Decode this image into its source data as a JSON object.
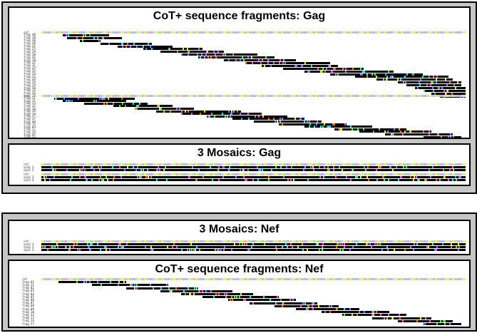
{
  "gag_group": {
    "fragments_panel": {
      "title": "CoT+ sequence fragments: Gag",
      "block1": {
        "labels": [
          "ref",
          "frag 40",
          "frag 10",
          "frag 20",
          "frag 30",
          "frag 41",
          "frag 25",
          "frag 29",
          "frag 38",
          "frag 45",
          "frag 18",
          "frag 22",
          "frag 31",
          "frag 42",
          "frag 35",
          "frag 26",
          "frag 33",
          "frag 48",
          "frag 39",
          "frag 19",
          "frag 50",
          "frag 23",
          "frag 36",
          "frag 28"
        ],
        "tracks": [
          [
            0.05,
            0.16
          ],
          [
            0.06,
            0.19
          ],
          [
            0.09,
            0.14
          ],
          [
            0.14,
            0.26
          ],
          [
            0.18,
            0.31
          ],
          [
            0.24,
            0.38
          ],
          [
            0.28,
            0.43
          ],
          [
            0.33,
            0.51
          ],
          [
            0.37,
            0.55
          ],
          [
            0.43,
            0.6
          ],
          [
            0.48,
            0.68
          ],
          [
            0.52,
            0.7
          ],
          [
            0.57,
            0.76
          ],
          [
            0.62,
            0.83
          ],
          [
            0.68,
            0.9
          ],
          [
            0.74,
            0.96
          ],
          [
            0.79,
            0.97
          ],
          [
            0.84,
            0.99
          ],
          [
            0.86,
            0.99
          ],
          [
            0.88,
            1.0
          ],
          [
            0.9,
            1.0
          ],
          [
            0.92,
            1.0
          ],
          [
            0.94,
            1.0
          ]
        ]
      },
      "block2": {
        "labels": [
          "ref",
          "frag 11",
          "frag 21",
          "frag 13",
          "frag 32",
          "frag 16",
          "frag 34",
          "frag 14",
          "frag 27",
          "frag 37",
          "frag 44",
          "frag 15",
          "frag 43",
          "frag 17",
          "frag 24",
          "frag 47",
          "frag 12"
        ],
        "tracks": [
          [
            0.03,
            0.22
          ],
          [
            0.05,
            0.2
          ],
          [
            0.1,
            0.25
          ],
          [
            0.17,
            0.31
          ],
          [
            0.22,
            0.36
          ],
          [
            0.27,
            0.47
          ],
          [
            0.33,
            0.52
          ],
          [
            0.39,
            0.58
          ],
          [
            0.45,
            0.62
          ],
          [
            0.5,
            0.66
          ],
          [
            0.56,
            0.72
          ],
          [
            0.62,
            0.78
          ],
          [
            0.69,
            0.86
          ],
          [
            0.75,
            0.92
          ],
          [
            0.81,
            0.97
          ],
          [
            0.9,
            0.99
          ]
        ]
      }
    },
    "mosaics_panel": {
      "title": "3 Mosaics: Gag",
      "block1": {
        "labels": [
          "ref",
          "syn3 1",
          "syn3 2"
        ]
      },
      "block2": {
        "labels": [
          "ref",
          "syn3 3",
          "syn3 4"
        ]
      }
    }
  },
  "nef_group": {
    "mosaics_panel": {
      "title": "3 Mosaics: Nef",
      "labels": [
        "ref",
        "syn3 1",
        "syn3 2",
        "syn3 3"
      ]
    },
    "fragments_panel": {
      "title": "CoT+ sequence fragments: Nef",
      "labels": [
        "ref",
        "frag 01",
        "frag 11",
        "frag 02",
        "frag 03",
        "frag 04",
        "frag 05",
        "frag 06",
        "frag 07",
        "frag 08",
        "frag 09",
        "frag 10",
        "frag 12",
        "frag 13",
        "frag 14",
        "frag 57"
      ],
      "tracks": [
        [
          0.04,
          0.2
        ],
        [
          0.12,
          0.3
        ],
        [
          0.2,
          0.37
        ],
        [
          0.28,
          0.45
        ],
        [
          0.33,
          0.5
        ],
        [
          0.38,
          0.56
        ],
        [
          0.44,
          0.6
        ],
        [
          0.49,
          0.65
        ],
        [
          0.55,
          0.7
        ],
        [
          0.6,
          0.75
        ],
        [
          0.66,
          0.82
        ],
        [
          0.71,
          0.86
        ],
        [
          0.78,
          0.92
        ],
        [
          0.84,
          0.97
        ],
        [
          0.9,
          0.99
        ]
      ]
    }
  },
  "colors": {
    "outer_panel_bg": "#c6c6c6",
    "track_fill": "#000000",
    "mark_colors": [
      "#ff4fd0",
      "#27e0ff",
      "#6d7bff",
      "#39ff39",
      "#ffe600",
      "#ff6a00",
      "#b45cff"
    ]
  }
}
